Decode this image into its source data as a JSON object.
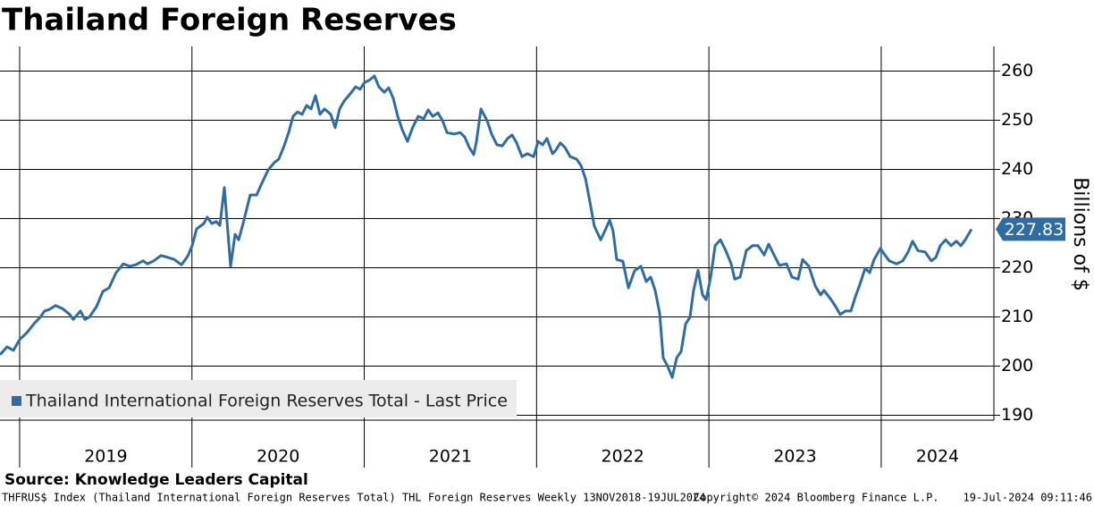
{
  "chart_data": {
    "type": "line",
    "title": "Thailand Foreign Reserves",
    "y_axis_label": "Billions of $",
    "source": "Source: Knowledge Leaders Capital",
    "footer_left": "THFRUS$ Index (Thailand International Foreign Reserves Total) THL Foreign Reserves  Weekly 13NOV2018-19JUL2024",
    "footer_center": "Copyright© 2024 Bloomberg Finance L.P.",
    "footer_right": "19-Jul-2024 09:11:46",
    "xlim": [
      2018.886,
      2024.654
    ],
    "xticks": [
      2019,
      2020,
      2021,
      2022,
      2023,
      2024
    ],
    "ylim": [
      189,
      265
    ],
    "yticks": [
      190,
      200,
      210,
      220,
      230,
      240,
      250,
      260
    ],
    "grid": true,
    "legend": "lower left",
    "series": [
      {
        "name": "Thailand International Foreign Reserves Total - Last Price",
        "color": "#2e6da4",
        "x": [
          2018.886,
          2018.927,
          2018.964,
          2019.0,
          2019.042,
          2019.083,
          2019.119,
          2019.145,
          2019.171,
          2019.208,
          2019.249,
          2019.291,
          2019.311,
          2019.353,
          2019.379,
          2019.405,
          2019.446,
          2019.483,
          2019.519,
          2019.56,
          2019.602,
          2019.638,
          2019.674,
          2019.716,
          2019.742,
          2019.778,
          2019.82,
          2019.861,
          2019.897,
          2019.939,
          2019.975,
          2020.001,
          2020.027,
          2020.069,
          2020.089,
          2020.115,
          2020.141,
          2020.162,
          2020.188,
          2020.224,
          2020.25,
          2020.271,
          2020.297,
          2020.338,
          2020.375,
          2020.406,
          2020.442,
          2020.478,
          2020.504,
          2020.535,
          2020.561,
          2020.587,
          2020.613,
          2020.639,
          2020.665,
          2020.691,
          2020.717,
          2020.743,
          2020.769,
          2020.805,
          2020.831,
          2020.857,
          2020.883,
          2020.919,
          2020.95,
          2020.976,
          2021.002,
          2021.028,
          2021.059,
          2021.085,
          2021.116,
          2021.142,
          2021.168,
          2021.194,
          2021.22,
          2021.251,
          2021.282,
          2021.313,
          2021.345,
          2021.371,
          2021.397,
          2021.428,
          2021.454,
          2021.48,
          2021.521,
          2021.557,
          2021.583,
          2021.609,
          2021.635,
          2021.651,
          2021.677,
          2021.713,
          2021.739,
          2021.77,
          2021.801,
          2021.832,
          2021.858,
          2021.884,
          2021.915,
          2021.946,
          2021.983,
          2022.009,
          2022.035,
          2022.06,
          2022.092,
          2022.112,
          2022.138,
          2022.164,
          2022.195,
          2022.232,
          2022.258,
          2022.284,
          2022.309,
          2022.335,
          2022.372,
          2022.403,
          2022.424,
          2022.444,
          2022.465,
          2022.501,
          2022.533,
          2022.569,
          2022.605,
          2022.636,
          2022.662,
          2022.688,
          2022.714,
          2022.735,
          2022.761,
          2022.787,
          2022.813,
          2022.839,
          2022.865,
          2022.89,
          2022.911,
          2022.937,
          2022.963,
          2022.984,
          2023.01,
          2023.036,
          2023.067,
          2023.098,
          2023.129,
          2023.15,
          2023.181,
          2023.217,
          2023.253,
          2023.285,
          2023.321,
          2023.347,
          2023.378,
          2023.409,
          2023.45,
          2023.482,
          2023.518,
          2023.544,
          2023.58,
          2023.617,
          2023.648,
          2023.668,
          2023.71,
          2023.736,
          2023.762,
          2023.793,
          2023.824,
          2023.85,
          2023.876,
          2023.907,
          2023.933,
          2023.959,
          2023.995,
          2024.021,
          2024.047,
          2024.089,
          2024.125,
          2024.156,
          2024.182,
          2024.213,
          2024.255,
          2024.291,
          2024.317,
          2024.343,
          2024.374,
          2024.405,
          2024.436,
          2024.462,
          2024.488,
          2024.524
        ],
        "values": [
          202.3,
          203.9,
          203.2,
          205.4,
          206.8,
          208.6,
          209.9,
          211.2,
          211.5,
          212.3,
          211.7,
          210.5,
          209.5,
          211.2,
          209.5,
          210,
          212.1,
          215.2,
          215.9,
          219,
          220.8,
          220.3,
          220.6,
          221.4,
          220.8,
          221.4,
          222.5,
          222.1,
          221.7,
          220.6,
          222.3,
          224.5,
          227.9,
          229,
          230.3,
          229,
          229.4,
          228.6,
          236.3,
          220.3,
          226.8,
          225.7,
          229,
          234.8,
          234.8,
          237.2,
          239.9,
          241.4,
          242.1,
          244.8,
          247.5,
          250.8,
          251.7,
          251.2,
          253,
          252.3,
          255,
          251.2,
          252.3,
          251.2,
          248.5,
          252.3,
          253.9,
          255.4,
          256.8,
          256.3,
          257.7,
          258.1,
          259,
          256.8,
          255.7,
          256.6,
          254.5,
          250.8,
          248.1,
          245.7,
          248.6,
          250.8,
          250.3,
          252.1,
          250.8,
          251.5,
          249.9,
          247.5,
          247.2,
          247.5,
          246.6,
          244.5,
          243,
          245.7,
          252.3,
          249.9,
          247.2,
          245,
          244.8,
          246.3,
          247,
          245.4,
          242.6,
          243.2,
          242.6,
          245.7,
          245,
          246.3,
          243.2,
          243.9,
          245.4,
          244.5,
          242.6,
          242.1,
          240.8,
          238.1,
          233.5,
          228.5,
          225.7,
          228,
          229.7,
          227.5,
          221.7,
          221.3,
          215.9,
          219.4,
          220.3,
          217.2,
          218.1,
          215.4,
          210.8,
          201.7,
          199.9,
          197.7,
          201.7,
          203,
          208.6,
          209.9,
          215.4,
          219.5,
          214.5,
          213.5,
          218.1,
          224.5,
          225.7,
          223.5,
          220.8,
          217.7,
          218.1,
          223.5,
          224.5,
          224.5,
          222.6,
          224.8,
          222.6,
          220.5,
          220.8,
          218.1,
          217.7,
          221.7,
          220.3,
          216.3,
          214.5,
          215.4,
          213.5,
          212.1,
          210.5,
          211.2,
          211.2,
          214.1,
          216.6,
          219.9,
          219,
          221.7,
          223.9,
          222.6,
          221.4,
          220.8,
          221.4,
          223.2,
          225.4,
          223.5,
          223.2,
          221.4,
          222.1,
          224.5,
          225.7,
          224.5,
          225.4,
          224.5,
          225.7,
          227.83
        ]
      }
    ]
  }
}
